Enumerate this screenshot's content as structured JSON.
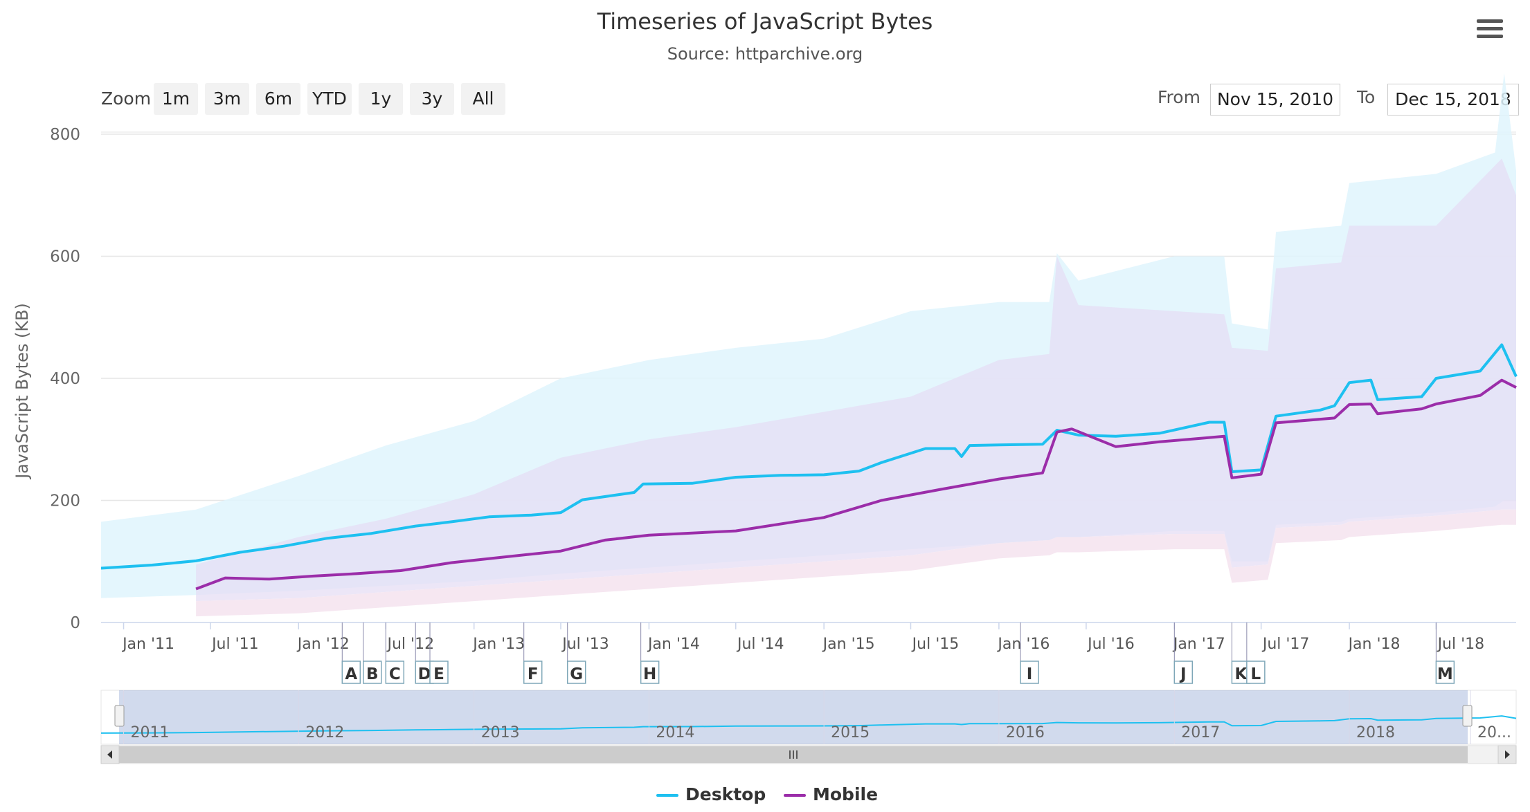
{
  "header": {
    "title": "Timeseries of JavaScript Bytes",
    "subtitle": "Source: httparchive.org"
  },
  "toolbar": {
    "zoom_label": "Zoom",
    "zoom_buttons": [
      "1m",
      "3m",
      "6m",
      "YTD",
      "1y",
      "3y",
      "All"
    ],
    "from_label": "From",
    "from_value": "Nov 15, 2010",
    "to_label": "To",
    "to_value": "Dec 15, 2018",
    "menu_icon": "hamburger-menu-icon"
  },
  "navigator": {
    "year_labels": [
      "2011",
      "2012",
      "2013",
      "2014",
      "2015",
      "2016",
      "2017",
      "2018",
      "20..."
    ],
    "scroll_left_icon": "arrow-left-icon",
    "scroll_right_icon": "arrow-right-icon",
    "grip_icon": "grip-icon"
  },
  "colors": {
    "desktop": "#1ec0f0",
    "mobile": "#9b2da9",
    "desktop_band": "#dff5fd",
    "mobile_band": "#e6def4",
    "mobile_low": "#f5e4f0"
  },
  "chart_data": {
    "type": "line",
    "title": "Timeseries of JavaScript Bytes",
    "subtitle": "Source: httparchive.org",
    "xlabel": "",
    "ylabel": "JavaScript Bytes (KB)",
    "ylim": [
      0,
      800
    ],
    "yticks": [
      0,
      200,
      400,
      600,
      800
    ],
    "xlim": [
      "2010-11-15",
      "2018-12-15"
    ],
    "xtick_labels": [
      "Jan '11",
      "Jul '11",
      "Jan '12",
      "Jul '12",
      "Jan '13",
      "Jul '13",
      "Jan '14",
      "Jul '14",
      "Jan '15",
      "Jul '15",
      "Jan '16",
      "Jul '16",
      "Jan '17",
      "Jul '17",
      "Jan '18",
      "Jul '18"
    ],
    "xtick_dates": [
      "2011-01-01",
      "2011-07-01",
      "2012-01-01",
      "2012-07-01",
      "2013-01-01",
      "2013-07-01",
      "2014-01-01",
      "2014-07-01",
      "2015-01-01",
      "2015-07-01",
      "2016-01-01",
      "2016-07-01",
      "2017-01-01",
      "2017-07-01",
      "2018-01-01",
      "2018-07-01"
    ],
    "grid": true,
    "legend": "bottom-center",
    "series": [
      {
        "name": "Desktop",
        "color": "#1ec0f0",
        "points": [
          [
            "2010-11-15",
            89
          ],
          [
            "2011-03-01",
            94
          ],
          [
            "2011-06-01",
            101
          ],
          [
            "2011-09-01",
            115
          ],
          [
            "2011-12-01",
            125
          ],
          [
            "2012-03-01",
            138
          ],
          [
            "2012-06-01",
            146
          ],
          [
            "2012-09-01",
            158
          ],
          [
            "2012-11-15",
            165
          ],
          [
            "2013-02-01",
            173
          ],
          [
            "2013-05-01",
            176
          ],
          [
            "2013-07-01",
            180
          ],
          [
            "2013-08-15",
            201
          ],
          [
            "2013-12-01",
            213
          ],
          [
            "2013-12-20",
            227
          ],
          [
            "2014-04-01",
            228
          ],
          [
            "2014-07-01",
            238
          ],
          [
            "2014-10-01",
            241
          ],
          [
            "2015-01-01",
            242
          ],
          [
            "2015-03-15",
            248
          ],
          [
            "2015-05-01",
            262
          ],
          [
            "2015-08-01",
            285
          ],
          [
            "2015-10-01",
            285
          ],
          [
            "2015-10-15",
            272
          ],
          [
            "2015-11-01",
            290
          ],
          [
            "2016-01-01",
            291
          ],
          [
            "2016-04-01",
            292
          ],
          [
            "2016-05-01",
            315
          ],
          [
            "2016-06-15",
            307
          ],
          [
            "2016-09-01",
            305
          ],
          [
            "2016-12-01",
            310
          ],
          [
            "2017-03-15",
            328
          ],
          [
            "2017-04-15",
            328
          ],
          [
            "2017-05-01",
            247
          ],
          [
            "2017-07-01",
            250
          ],
          [
            "2017-08-01",
            338
          ],
          [
            "2017-11-01",
            348
          ],
          [
            "2017-12-01",
            355
          ],
          [
            "2018-01-01",
            393
          ],
          [
            "2018-02-15",
            397
          ],
          [
            "2018-03-01",
            365
          ],
          [
            "2018-06-01",
            370
          ],
          [
            "2018-07-01",
            400
          ],
          [
            "2018-10-01",
            412
          ],
          [
            "2018-11-15",
            455
          ],
          [
            "2018-12-15",
            403
          ]
        ]
      },
      {
        "name": "Mobile",
        "color": "#9b2da9",
        "points": [
          [
            "2011-06-01",
            55
          ],
          [
            "2011-08-01",
            73
          ],
          [
            "2011-11-01",
            71
          ],
          [
            "2012-02-01",
            76
          ],
          [
            "2012-05-01",
            80
          ],
          [
            "2012-08-01",
            85
          ],
          [
            "2012-11-15",
            98
          ],
          [
            "2013-03-01",
            107
          ],
          [
            "2013-07-01",
            117
          ],
          [
            "2013-10-01",
            135
          ],
          [
            "2014-01-01",
            143
          ],
          [
            "2014-07-01",
            150
          ],
          [
            "2014-11-01",
            165
          ],
          [
            "2015-01-01",
            172
          ],
          [
            "2015-05-01",
            200
          ],
          [
            "2015-09-01",
            218
          ],
          [
            "2016-01-01",
            235
          ],
          [
            "2016-04-01",
            245
          ],
          [
            "2016-05-01",
            312
          ],
          [
            "2016-06-01",
            317
          ],
          [
            "2016-09-01",
            288
          ],
          [
            "2016-12-01",
            296
          ],
          [
            "2017-03-01",
            302
          ],
          [
            "2017-04-15",
            305
          ],
          [
            "2017-05-01",
            237
          ],
          [
            "2017-07-01",
            243
          ],
          [
            "2017-08-01",
            327
          ],
          [
            "2017-12-01",
            335
          ],
          [
            "2018-01-01",
            357
          ],
          [
            "2018-02-15",
            358
          ],
          [
            "2018-03-01",
            342
          ],
          [
            "2018-06-01",
            350
          ],
          [
            "2018-07-01",
            358
          ],
          [
            "2018-10-01",
            372
          ],
          [
            "2018-11-15",
            397
          ],
          [
            "2018-12-15",
            385
          ]
        ]
      }
    ],
    "bands": [
      {
        "series": "Desktop",
        "points": [
          [
            "2010-11-15",
            40,
            165
          ],
          [
            "2011-06-01",
            45,
            185
          ],
          [
            "2012-01-01",
            52,
            240
          ],
          [
            "2012-07-01",
            60,
            290
          ],
          [
            "2013-01-01",
            68,
            330
          ],
          [
            "2013-07-01",
            80,
            400
          ],
          [
            "2014-01-01",
            90,
            430
          ],
          [
            "2014-07-01",
            100,
            450
          ],
          [
            "2015-01-01",
            110,
            465
          ],
          [
            "2015-07-01",
            120,
            510
          ],
          [
            "2016-01-01",
            130,
            525
          ],
          [
            "2016-04-15",
            135,
            525
          ],
          [
            "2016-05-01",
            140,
            605
          ],
          [
            "2016-06-15",
            140,
            560
          ],
          [
            "2017-01-01",
            150,
            600
          ],
          [
            "2017-04-15",
            150,
            600
          ],
          [
            "2017-05-01",
            100,
            490
          ],
          [
            "2017-07-15",
            100,
            480
          ],
          [
            "2017-08-01",
            160,
            640
          ],
          [
            "2017-12-15",
            165,
            650
          ],
          [
            "2018-01-01",
            170,
            720
          ],
          [
            "2018-07-01",
            180,
            735
          ],
          [
            "2018-11-01",
            190,
            770
          ],
          [
            "2018-11-20",
            200,
            900
          ],
          [
            "2018-12-15",
            200,
            740
          ]
        ]
      },
      {
        "series": "Mobile",
        "points": [
          [
            "2011-06-01",
            35,
            95
          ],
          [
            "2012-01-01",
            40,
            140
          ],
          [
            "2012-07-01",
            50,
            170
          ],
          [
            "2013-01-01",
            60,
            210
          ],
          [
            "2013-07-01",
            70,
            270
          ],
          [
            "2014-01-01",
            80,
            300
          ],
          [
            "2014-07-01",
            90,
            320
          ],
          [
            "2015-01-01",
            100,
            345
          ],
          [
            "2015-07-01",
            110,
            370
          ],
          [
            "2016-01-01",
            130,
            430
          ],
          [
            "2016-04-15",
            135,
            440
          ],
          [
            "2016-05-01",
            140,
            600
          ],
          [
            "2016-06-15",
            140,
            520
          ],
          [
            "2017-01-01",
            145,
            510
          ],
          [
            "2017-04-15",
            145,
            505
          ],
          [
            "2017-05-01",
            90,
            450
          ],
          [
            "2017-07-15",
            95,
            445
          ],
          [
            "2017-08-01",
            155,
            580
          ],
          [
            "2017-12-15",
            160,
            590
          ],
          [
            "2018-01-01",
            165,
            650
          ],
          [
            "2018-07-01",
            175,
            650
          ],
          [
            "2018-11-15",
            185,
            760
          ],
          [
            "2018-12-15",
            185,
            700
          ]
        ]
      }
    ],
    "flags": [
      {
        "label": "A",
        "date": "2012-04-01"
      },
      {
        "label": "B",
        "date": "2012-05-15"
      },
      {
        "label": "C",
        "date": "2012-07-01"
      },
      {
        "label": "D",
        "date": "2012-09-01"
      },
      {
        "label": "E",
        "date": "2012-10-01"
      },
      {
        "label": "F",
        "date": "2013-04-15"
      },
      {
        "label": "G",
        "date": "2013-07-15"
      },
      {
        "label": "H",
        "date": "2013-12-15"
      },
      {
        "label": "I",
        "date": "2016-02-15"
      },
      {
        "label": "J",
        "date": "2017-01-01"
      },
      {
        "label": "K",
        "date": "2017-05-01"
      },
      {
        "label": "L",
        "date": "2017-06-01"
      },
      {
        "label": "M",
        "date": "2018-07-01"
      }
    ]
  }
}
